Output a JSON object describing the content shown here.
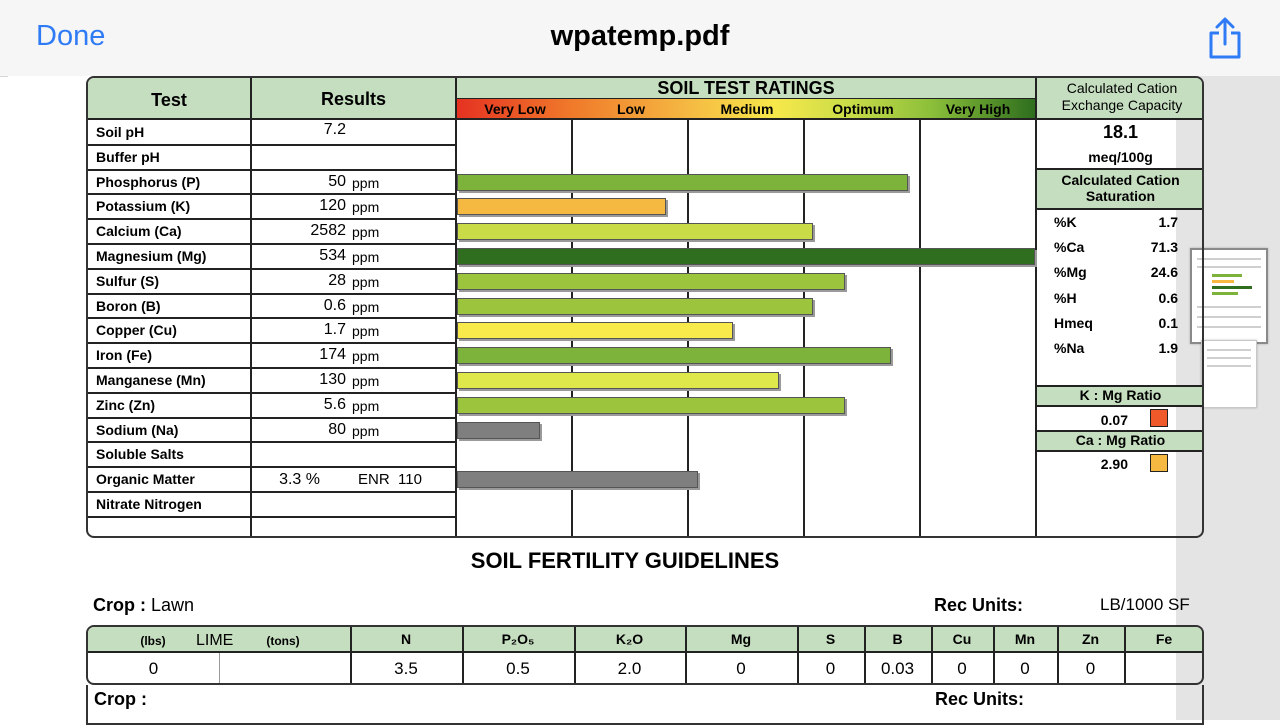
{
  "navbar": {
    "done_label": "Done",
    "title": "wpatemp.pdf",
    "share_icon": "share-icon"
  },
  "report": {
    "col_test": "Test",
    "col_results": "Results",
    "ratings_title": "SOIL TEST RATINGS",
    "scale": [
      "Very Low",
      "Low",
      "Medium",
      "Optimum",
      "Very High"
    ],
    "rows": [
      {
        "label": "Soil pH",
        "value": "7.2",
        "unit": "",
        "rating": null,
        "color": ""
      },
      {
        "label": "Buffer pH",
        "value": "",
        "unit": "",
        "rating": null,
        "color": ""
      },
      {
        "label": "Phosphorus (P)",
        "value": "50",
        "unit": "ppm",
        "rating": 0.78,
        "color": "#7db33a"
      },
      {
        "label": "Potassium (K)",
        "value": "120",
        "unit": "ppm",
        "rating": 0.36,
        "color": "#f5b942"
      },
      {
        "label": "Calcium (Ca)",
        "value": "2582",
        "unit": "ppm",
        "rating": 0.615,
        "color": "#c9dc48"
      },
      {
        "label": "Magnesium (Mg)",
        "value": "534",
        "unit": "ppm",
        "rating": 1.0,
        "color": "#2e6e1e"
      },
      {
        "label": "Sulfur (S)",
        "value": "28",
        "unit": "ppm",
        "rating": 0.67,
        "color": "#9cc43d"
      },
      {
        "label": "Boron (B)",
        "value": "0.6",
        "unit": "ppm",
        "rating": 0.615,
        "color": "#9cc43d"
      },
      {
        "label": "Copper (Cu)",
        "value": "1.7",
        "unit": "ppm",
        "rating": 0.475,
        "color": "#f7ea4a"
      },
      {
        "label": "Iron (Fe)",
        "value": "174",
        "unit": "ppm",
        "rating": 0.75,
        "color": "#7db33a"
      },
      {
        "label": "Manganese (Mn)",
        "value": "130",
        "unit": "ppm",
        "rating": 0.555,
        "color": "#dfe84a"
      },
      {
        "label": "Zinc (Zn)",
        "value": "5.6",
        "unit": "ppm",
        "rating": 0.67,
        "color": "#9cc43d"
      },
      {
        "label": "Sodium (Na)",
        "value": "80",
        "unit": "ppm",
        "rating": 0.14,
        "color": "#7f7f7f"
      },
      {
        "label": "Soluble Salts",
        "value": "",
        "unit": "",
        "rating": null,
        "color": ""
      },
      {
        "label": "Organic Matter",
        "value": "3.3 %",
        "unit": "ENR  110",
        "rating": 0.415,
        "color": "#7f7f7f"
      },
      {
        "label": "Nitrate Nitrogen",
        "value": "",
        "unit": "",
        "rating": null,
        "color": ""
      }
    ],
    "cec": {
      "title": "Calculated Cation Exchange Capacity",
      "value": "18.1",
      "unit": "meq/100g"
    },
    "saturation": {
      "title": "Calculated Cation Saturation",
      "items": [
        {
          "label": "%K",
          "value": "1.7"
        },
        {
          "label": "%Ca",
          "value": "71.3"
        },
        {
          "label": "%Mg",
          "value": "24.6"
        },
        {
          "label": "%H",
          "value": "0.6"
        },
        {
          "label": "Hmeq",
          "value": "0.1"
        },
        {
          "label": "%Na",
          "value": "1.9"
        }
      ]
    },
    "k_mg": {
      "title": "K : Mg Ratio",
      "value": "0.07",
      "color": "#f0592a"
    },
    "ca_mg": {
      "title": "Ca : Mg Ratio",
      "value": "2.90",
      "color": "#f5b942"
    }
  },
  "guidelines": {
    "title": "SOIL FERTILITY GUIDELINES",
    "crop_label": "Crop :",
    "crop_value": "Lawn",
    "rec_units_label": "Rec Units:",
    "rec_units_value": "LB/1000 SF",
    "lime_lbs": "(lbs)",
    "lime_label": "LIME",
    "lime_tons": "(tons)",
    "columns": [
      "N",
      "P₂O₅",
      "K₂O",
      "Mg",
      "S",
      "B",
      "Cu",
      "Mn",
      "Zn",
      "Fe"
    ],
    "values": {
      "lime": "0",
      "N": "3.5",
      "P2O5": "0.5",
      "K2O": "2.0",
      "Mg": "0",
      "S": "0",
      "B": "0.03",
      "Cu": "0",
      "Mn": "0",
      "Zn": "0",
      "Fe": ""
    },
    "crop2_label": "Crop :",
    "rec_units2_label": "Rec Units:"
  }
}
